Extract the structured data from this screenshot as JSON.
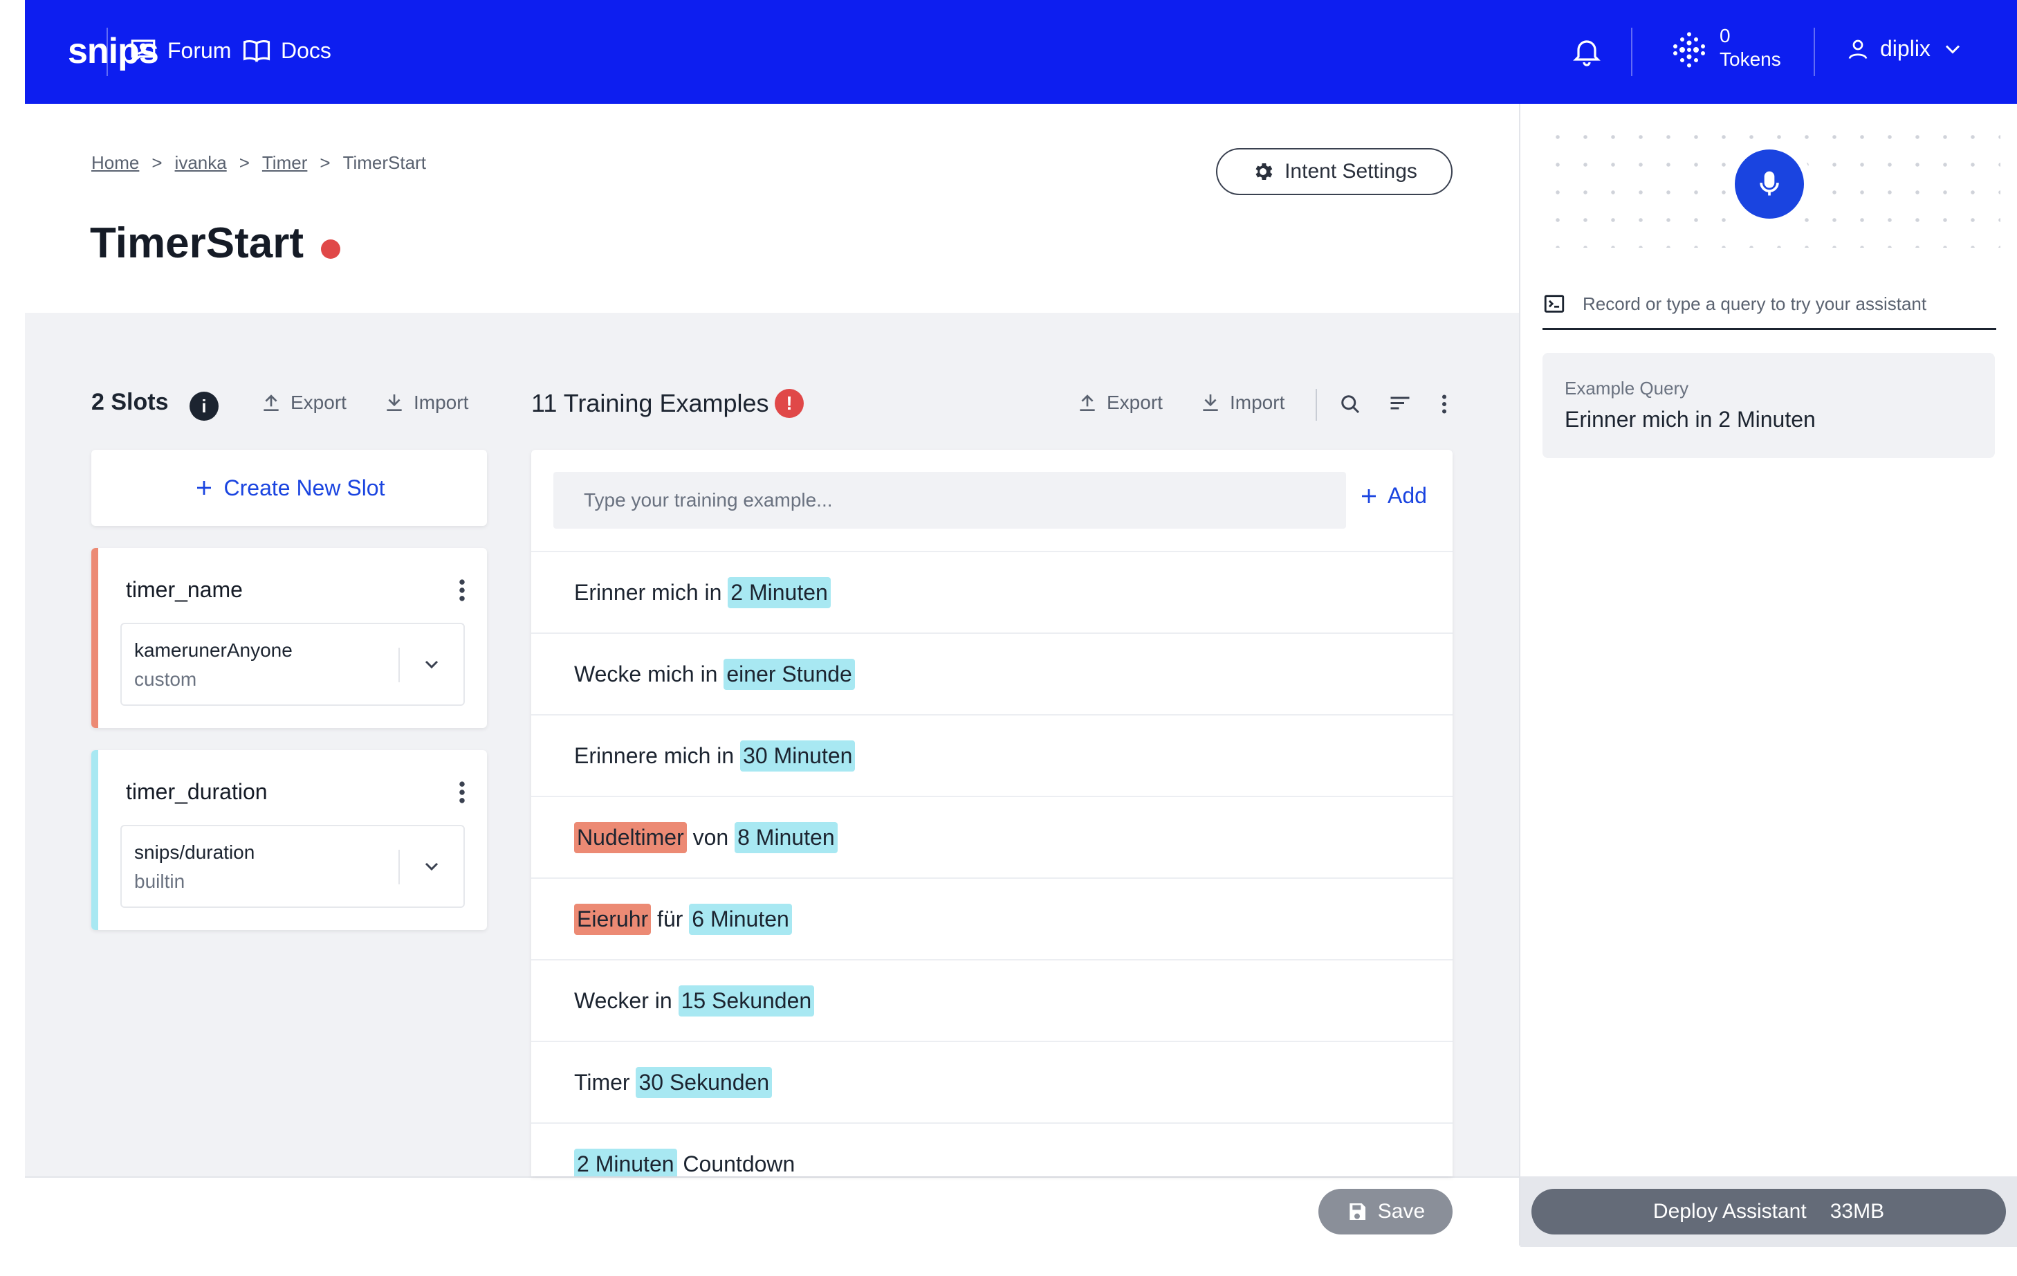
{
  "nav": {
    "logo": "snips",
    "forum": "Forum",
    "docs": "Docs",
    "tokens_count": "0",
    "tokens_label": "Tokens",
    "user": "diplix",
    "brand_color": "#0d1ef0"
  },
  "breadcrumb": {
    "home": "Home",
    "sep1": ">",
    "user": "ivanka",
    "sep2": ">",
    "app": "Timer",
    "sep3": ">",
    "current": "TimerStart"
  },
  "page": {
    "title": "TimerStart",
    "intent_settings": "Intent Settings"
  },
  "slots": {
    "heading": "2 Slots",
    "info": "i",
    "export": "Export",
    "import": "Import",
    "create_new": "Create New Slot",
    "items": [
      {
        "name": "timer_name",
        "type": "kamerunerAnyone",
        "kind": "custom",
        "color": "#ec8a74"
      },
      {
        "name": "timer_duration",
        "type": "snips/duration",
        "kind": "builtin",
        "color": "#a8e8f2"
      }
    ]
  },
  "training": {
    "heading": "11 Training Examples",
    "warning": "!",
    "export": "Export",
    "import": "Import",
    "placeholder": "Type your training example...",
    "add": "Add",
    "examples": [
      {
        "parts": [
          {
            "t": "Erinner mich in "
          },
          {
            "t": "2 Minuten",
            "slot": "duration"
          }
        ]
      },
      {
        "parts": [
          {
            "t": "Wecke mich in "
          },
          {
            "t": "einer Stunde",
            "slot": "duration"
          }
        ]
      },
      {
        "parts": [
          {
            "t": "Erinnere mich in "
          },
          {
            "t": "30 Minuten",
            "slot": "duration"
          }
        ]
      },
      {
        "parts": [
          {
            "t": "Nudeltimer",
            "slot": "name"
          },
          {
            "t": " von "
          },
          {
            "t": "8 Minuten",
            "slot": "duration"
          }
        ]
      },
      {
        "parts": [
          {
            "t": "Eieruhr",
            "slot": "name"
          },
          {
            "t": " für "
          },
          {
            "t": "6 Minuten",
            "slot": "duration"
          }
        ]
      },
      {
        "parts": [
          {
            "t": "Wecker in "
          },
          {
            "t": "15 Sekunden",
            "slot": "duration"
          }
        ]
      },
      {
        "parts": [
          {
            "t": "Timer "
          },
          {
            "t": "30 Sekunden",
            "slot": "duration"
          }
        ]
      },
      {
        "parts": [
          {
            "t": "2 Minuten",
            "slot": "duration"
          },
          {
            "t": " Countdown"
          }
        ]
      }
    ]
  },
  "footer": {
    "save": "Save",
    "deploy": "Deploy Assistant",
    "deploy_size": "33MB"
  },
  "console": {
    "placeholder": "Record or type a query to try your assistant",
    "example_label": "Example Query",
    "example_text": "Erinner mich in 2 Minuten"
  }
}
